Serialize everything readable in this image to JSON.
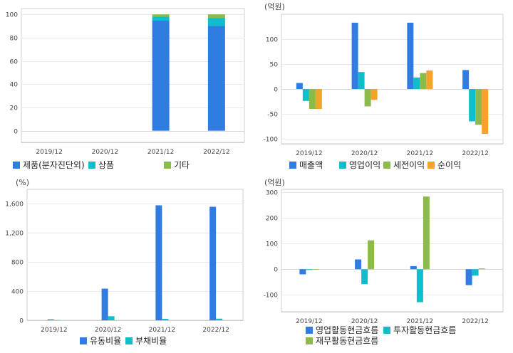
{
  "colors": {
    "blue": "#2f7de1",
    "cyan": "#11bccb",
    "green": "#8cbb4b",
    "orange": "#f5a429"
  },
  "chart_data": [
    {
      "id": "chart1",
      "type": "bar",
      "stacked": true,
      "unit": "",
      "categories": [
        "2019/12",
        "2020/12",
        "2021/12",
        "2022/12"
      ],
      "ylim": [
        -10,
        105
      ],
      "yticks": [
        0,
        20,
        40,
        60,
        80,
        100
      ],
      "series": [
        {
          "name": "제품(분자진단외)",
          "color": "#2f7de1",
          "values": [
            0,
            0,
            94.6,
            90
          ]
        },
        {
          "name": "상품",
          "color": "#11bccb",
          "values": [
            0,
            0,
            3.4,
            7
          ]
        },
        {
          "name": "기타",
          "color": "#8cbb4b",
          "values": [
            0,
            0,
            2,
            3
          ]
        }
      ]
    },
    {
      "id": "chart2",
      "type": "bar",
      "unit": "(억원)",
      "categories": [
        "2019/12",
        "2020/12",
        "2021/12",
        "2022/12"
      ],
      "ylim": [
        -110,
        150
      ],
      "yticks": [
        -100,
        -50,
        0,
        50,
        100
      ],
      "series": [
        {
          "name": "매출액",
          "color": "#2f7de1",
          "values": [
            12,
            133,
            133,
            38
          ]
        },
        {
          "name": "영업이익",
          "color": "#11bccb",
          "values": [
            -24,
            34,
            23,
            -65
          ]
        },
        {
          "name": "세전이익",
          "color": "#8cbb4b",
          "values": [
            -40,
            -35,
            32,
            -72
          ]
        },
        {
          "name": "순이익",
          "color": "#f5a429",
          "values": [
            -40,
            -22,
            37,
            -90
          ]
        }
      ]
    },
    {
      "id": "chart3",
      "type": "bar",
      "unit": "(%)",
      "categories": [
        "2019/12",
        "2020/12",
        "2021/12",
        "2022/12"
      ],
      "ylim": [
        0,
        1800
      ],
      "yticks": [
        0,
        400,
        800,
        1200,
        1600
      ],
      "series": [
        {
          "name": "유동비율",
          "color": "#2f7de1",
          "values": [
            12,
            435,
            1580,
            1560
          ]
        },
        {
          "name": "부채비율",
          "color": "#11bccb",
          "values": [
            3,
            55,
            20,
            22
          ]
        }
      ]
    },
    {
      "id": "chart4",
      "type": "bar",
      "unit": "(억원)",
      "categories": [
        "2019/12",
        "2020/12",
        "2021/12",
        "2022/12"
      ],
      "ylim": [
        -165,
        310
      ],
      "yticks": [
        -100,
        0,
        100,
        200,
        300
      ],
      "series": [
        {
          "name": "영업활동현금흐름",
          "color": "#2f7de1",
          "values": [
            -20,
            38,
            12,
            -62
          ]
        },
        {
          "name": "투자활동현금흐름",
          "color": "#11bccb",
          "values": [
            -3,
            -58,
            -128,
            -25
          ]
        },
        {
          "name": "재무활동현금흐름",
          "color": "#8cbb4b",
          "values": [
            0,
            112,
            282,
            3
          ]
        }
      ]
    }
  ]
}
